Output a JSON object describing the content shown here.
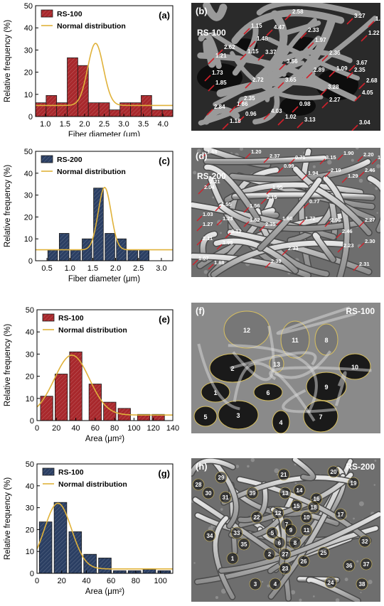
{
  "colors": {
    "red_bar": "#a8282c",
    "blue_bar": "#2b3f63",
    "curve": "#e0b23a",
    "sem_bg": "#6f6f6f",
    "marker_red": "#d0202a",
    "outline_yellow": "#d8c060"
  },
  "chart_data": [
    {
      "panel": "(a)",
      "type": "bar",
      "categories": [
        "1.0",
        "1.25",
        "1.5",
        "1.75",
        "2.0",
        "2.25",
        "2.5",
        "2.75",
        "3.0",
        "3.25",
        "3.5",
        "3.75",
        "4.0"
      ],
      "values": [
        6.2,
        9.5,
        6.2,
        26.5,
        23.0,
        6.2,
        6.2,
        3.0,
        6.2,
        6.2,
        9.5,
        3.0,
        3.0
      ],
      "series": [
        {
          "name": "RS-100"
        },
        {
          "name": "Normal distribution"
        }
      ],
      "curve": {
        "mean": 2.28,
        "sigma": 0.2,
        "peak": 28,
        "base": 5
      },
      "xlabel": "Fiber diameter (μm)",
      "ylabel": "Relative frequency (%)",
      "xlim": [
        0.75,
        4.25
      ],
      "ylim": [
        0,
        50
      ],
      "xticks": [
        "1.0",
        "1.5",
        "2.0",
        "2.5",
        "3.0",
        "3.5",
        "4.0"
      ],
      "yticks": [
        "0",
        "10",
        "20",
        "30",
        "40",
        "50"
      ]
    },
    {
      "panel": "(c)",
      "type": "bar",
      "categories": [
        "0.5",
        "0.75",
        "1.0",
        "1.25",
        "1.5",
        "1.75",
        "2.0",
        "2.25",
        "2.5",
        "2.75",
        "3.0"
      ],
      "values": [
        4.9,
        12.5,
        4.9,
        10.0,
        33.2,
        12.5,
        10.0,
        4.9,
        4.9
      ],
      "x": [
        0.625,
        0.875,
        1.125,
        1.375,
        1.625,
        1.875,
        2.125,
        2.375,
        2.625
      ],
      "series": [
        {
          "name": "RS-200"
        },
        {
          "name": "Normal distribution"
        }
      ],
      "curve": {
        "mean": 1.76,
        "sigma": 0.14,
        "peak": 28.5,
        "base": 5
      },
      "xlabel": "Fiber diameter (μm)",
      "ylabel": "Relative frequency (%)",
      "xlim": [
        0.25,
        3.25
      ],
      "ylim": [
        0,
        50
      ],
      "xticks": [
        "0.5",
        "1.0",
        "1.5",
        "2.0",
        "2.5",
        "3.0"
      ],
      "yticks": [
        "0",
        "10",
        "20",
        "30",
        "40",
        "50"
      ]
    },
    {
      "panel": "(e)",
      "type": "bar",
      "categories": [
        "10",
        "20",
        "30",
        "40",
        "50",
        "60",
        "70",
        "80",
        "90",
        "100",
        "110",
        "120",
        "130"
      ],
      "values": [
        11.0,
        21.0,
        31.0,
        16.5,
        8.3,
        5.5,
        2.8,
        2.8
      ],
      "x": [
        10,
        25,
        40,
        60,
        75,
        90,
        110,
        125
      ],
      "series": [
        {
          "name": "RS-100"
        },
        {
          "name": "Normal distribution"
        }
      ],
      "curve": {
        "mean": 36,
        "sigma": 18,
        "peak": 27,
        "base": 2.5
      },
      "xlabel": "Area (μm²)",
      "ylabel": "Relative frequency (%)",
      "xlim": [
        0,
        140
      ],
      "ylim": [
        0,
        50
      ],
      "xticks": [
        "0",
        "20",
        "40",
        "60",
        "80",
        "100",
        "120",
        "140"
      ],
      "yticks": [
        "0",
        "10",
        "20",
        "30",
        "40",
        "50"
      ]
    },
    {
      "panel": "(g)",
      "type": "bar",
      "values": [
        23.5,
        32.4,
        19.0,
        8.7,
        7.0,
        1.2,
        1.2,
        1.8,
        1.2
      ],
      "x": [
        7,
        19,
        31,
        43,
        55,
        67,
        79,
        91,
        103
      ],
      "series": [
        {
          "name": "RS-100"
        },
        {
          "name": "Normal distribution"
        }
      ],
      "curve": {
        "mean": 17,
        "sigma": 11,
        "peak": 30,
        "base": 2
      },
      "xlabel": "Area (μm²)",
      "ylabel": "Relative frequency (%)",
      "xlim": [
        0,
        110
      ],
      "ylim": [
        0,
        50
      ],
      "xticks": [
        "0",
        "20",
        "40",
        "60",
        "80",
        "100"
      ],
      "yticks": [
        "0",
        "10",
        "20",
        "30",
        "40",
        "50"
      ]
    }
  ],
  "sem_panels": [
    {
      "panel": "(b)",
      "sample": "RS-100",
      "measurements": [
        "1.15",
        "2.62",
        "1.48",
        "1.15",
        "4.47",
        "2.58",
        "2.33",
        "1.97",
        "3.27",
        "1.50",
        "1.22",
        "1.21",
        "3.37",
        "3.56",
        "2.36",
        "3.67",
        "1.73",
        "1.85",
        "2.72",
        "3.65",
        "2.89",
        "1.09",
        "2.35",
        "2.68",
        "3.28",
        "4.05",
        "2.35",
        "1.86",
        "0.98",
        "2.27",
        "2.84",
        "0.96",
        "4.03",
        "1.18",
        "1.02",
        "3.13",
        "3.04"
      ]
    },
    {
      "panel": "(d)",
      "sample": "RS-200",
      "measurements": [
        "1.68",
        "1.20",
        "2.37",
        "0.71",
        "3.15",
        "1.90",
        "2.20",
        "1.83",
        "0.99",
        "1.94",
        "2.19",
        "1.29",
        "2.46",
        "2.21",
        "2.04",
        "1.95",
        "1.55",
        "2.15",
        "1.56",
        "0.77",
        "1.03",
        "1.23",
        "1.62",
        "2.35",
        "1.60",
        "1.72",
        "2.96",
        "2.27",
        "1.27",
        "3.12",
        "2.46",
        "2.11",
        "1.95",
        "2.33",
        "2.23",
        "2.30",
        "1.07",
        "1.68",
        "2.39",
        "2.31"
      ]
    },
    {
      "panel": "(f)",
      "sample": "RS-100",
      "regions": [
        "12",
        "11",
        "8",
        "13",
        "2",
        "10",
        "9",
        "1",
        "6",
        "5",
        "3",
        "4",
        "7"
      ]
    },
    {
      "panel": "(h)",
      "sample": "RS-200",
      "regions": [
        "21",
        "20",
        "29",
        "19",
        "28",
        "14",
        "13",
        "16",
        "30",
        "31",
        "39",
        "15",
        "18",
        "12",
        "10",
        "17",
        "22",
        "11",
        "7",
        "9",
        "34",
        "33",
        "5",
        "6",
        "8",
        "35",
        "2",
        "27",
        "25",
        "32",
        "1",
        "26",
        "23",
        "36",
        "37",
        "3",
        "4",
        "24",
        "38"
      ]
    }
  ]
}
